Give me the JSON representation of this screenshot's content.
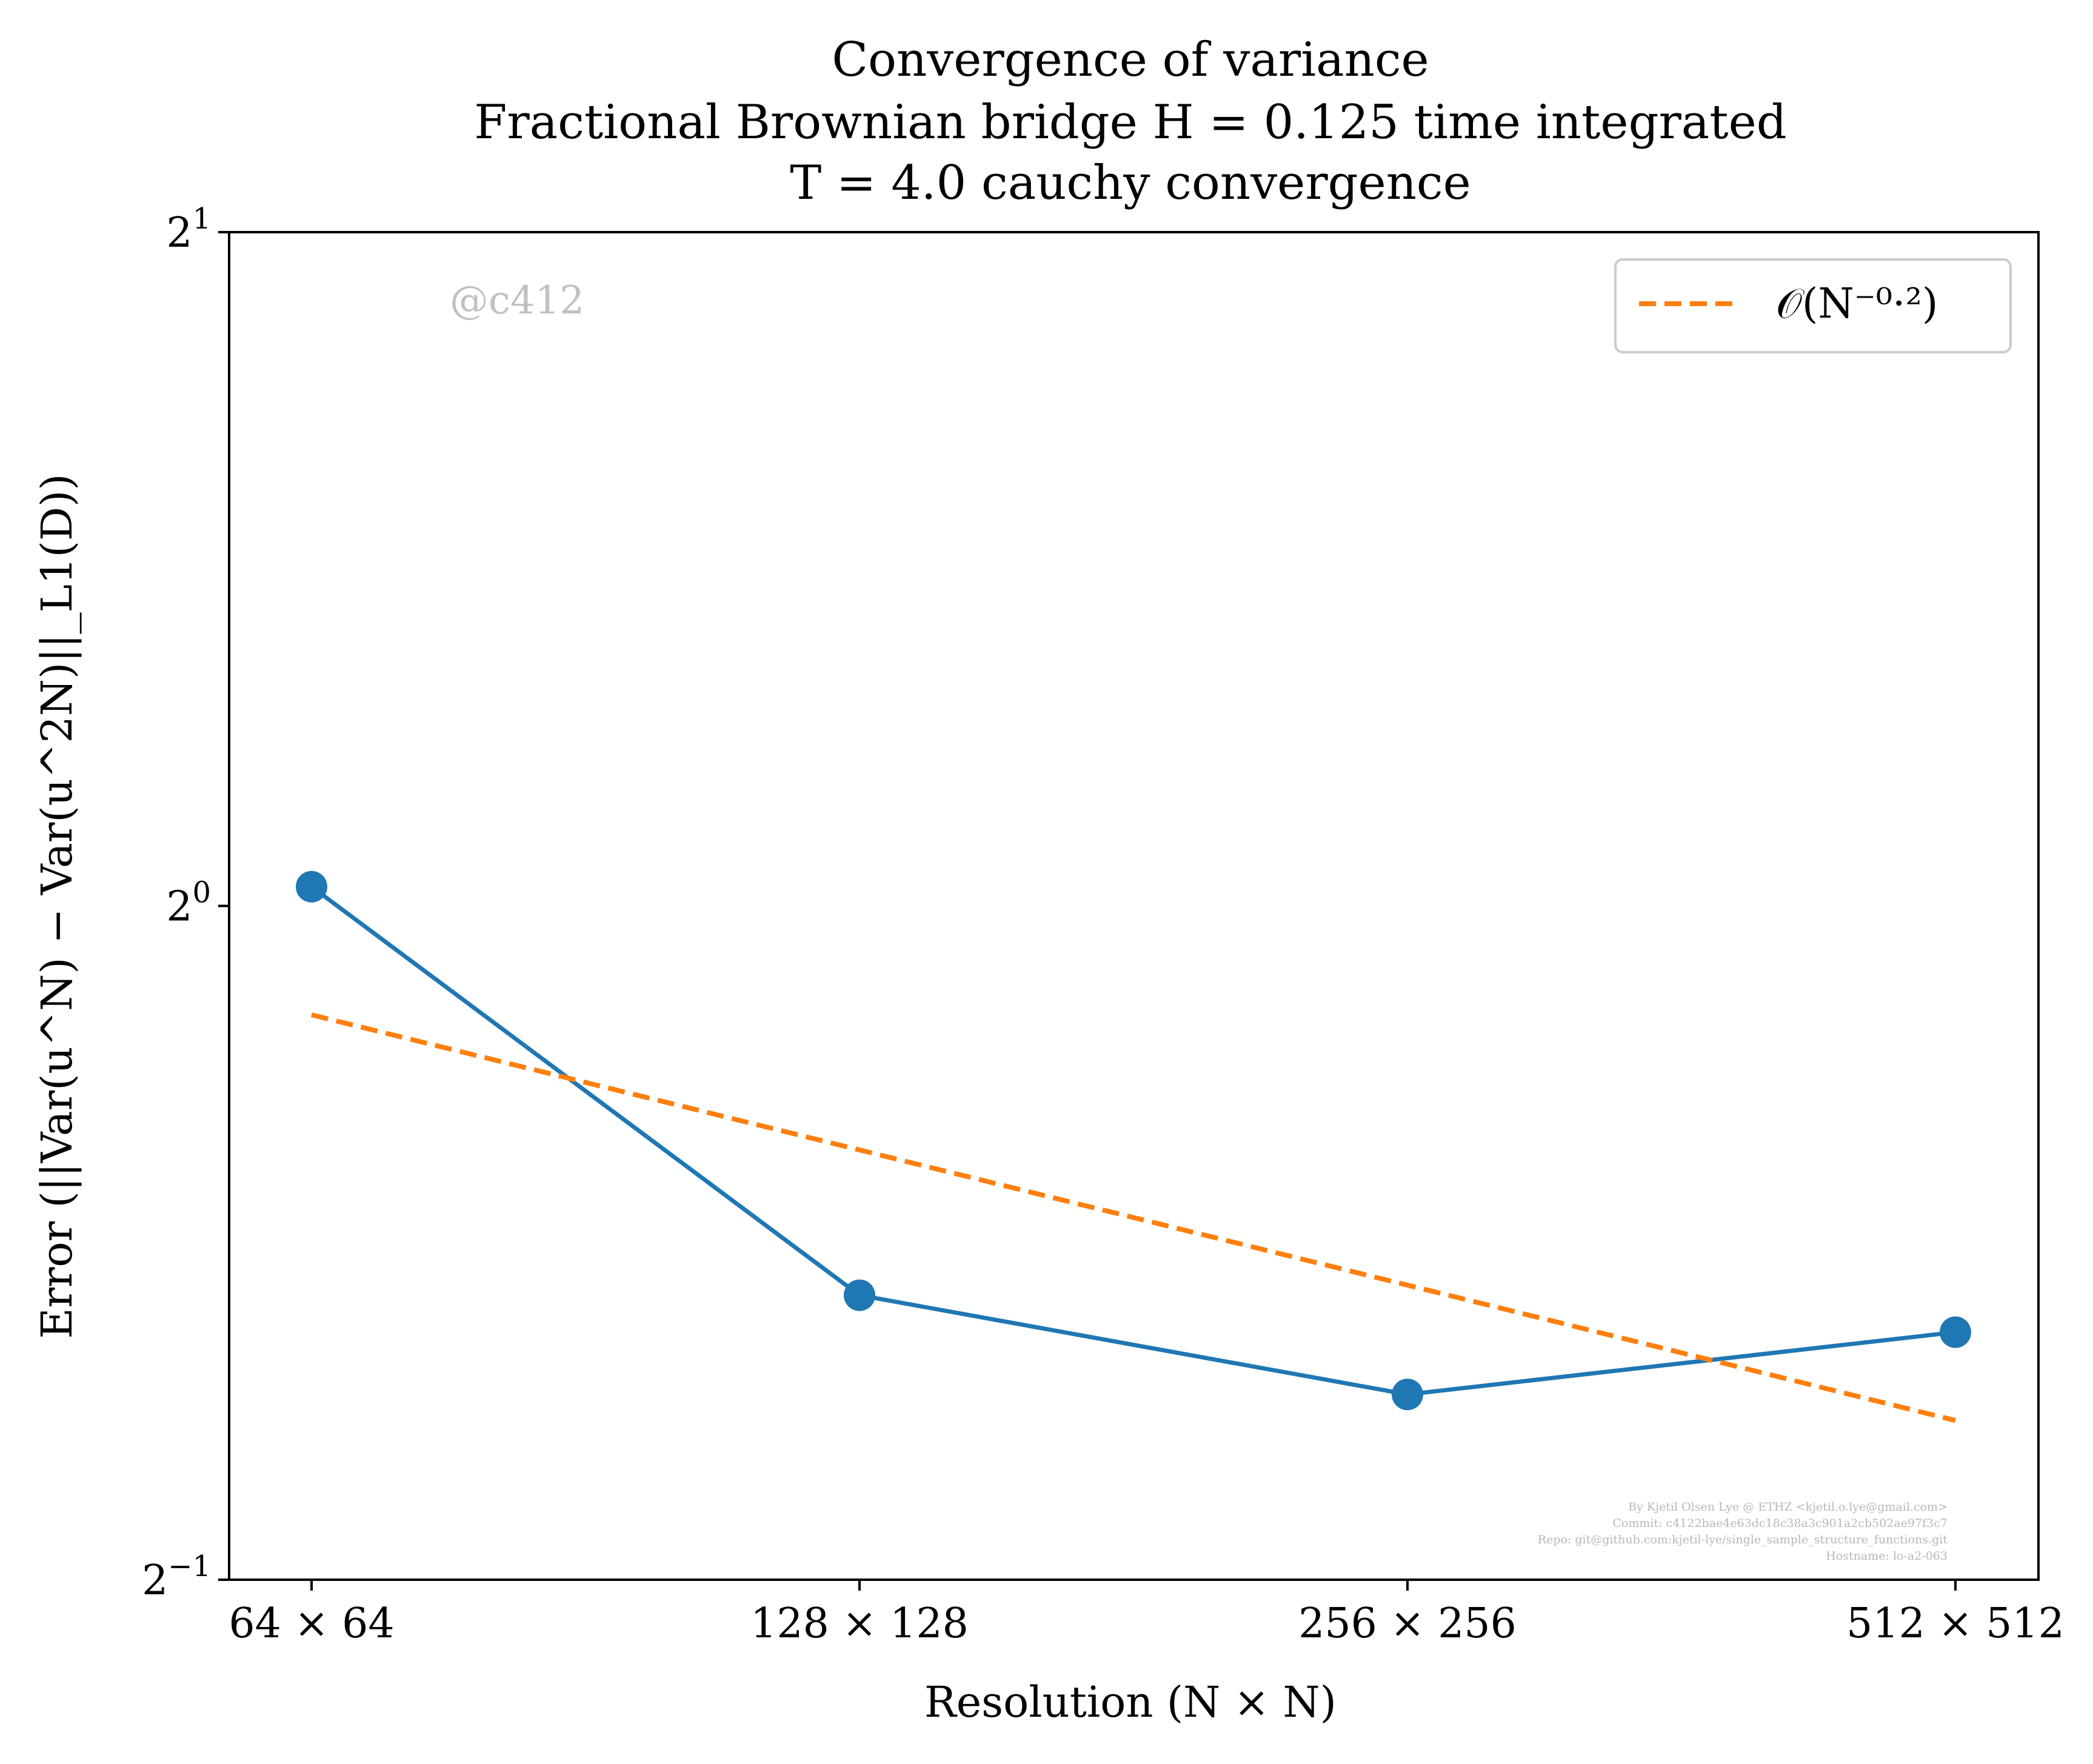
{
  "chart_data": {
    "type": "line",
    "title_lines": [
      "Convergence of variance",
      "Fractional Brownian bridge H = 0.125 time integrated",
      "T = 4.0 cauchy convergence"
    ],
    "xlabel": "Resolution (N × N)",
    "ylabel": "Error (||Var(u^N) − Var(u^2N)||_L1(D))",
    "x": [
      64,
      128,
      256,
      512
    ],
    "xtick_labels": [
      "64 × 64",
      "128 × 128",
      "256 × 256",
      "512 × 512"
    ],
    "xscale": "log2",
    "yscale": "log2",
    "ylim": [
      0.5,
      2
    ],
    "ytick_labels": [
      {
        "value": 2,
        "base": "2",
        "exp": "1"
      },
      {
        "value": 1,
        "base": "2",
        "exp": "0"
      },
      {
        "value": 0.5,
        "base": "2",
        "exp": "−1"
      }
    ],
    "series": [
      {
        "values": [
          1.02,
          0.67,
          0.605,
          0.645
        ],
        "color": "#1f77b4",
        "style": "solid",
        "marker": "circle"
      },
      {
        "name": "O(N^−0.2)",
        "values": [
          0.894,
          0.778,
          0.677,
          0.589
        ],
        "color": "#ff7f0e",
        "style": "dashed",
        "marker": "none"
      }
    ],
    "legend": {
      "position": "top-right",
      "label": "𝒪(N⁻⁰·²)"
    },
    "grid": false,
    "watermark": "@c412",
    "credits": [
      "By Kjetil Olsen Lye @ ETHZ <kjetil.o.lye@gmail.com>",
      "Commit: c4122bae4e63dc18c38a3c901a2cb502ae97f3c7",
      "Repo: git@github.com:kjetil-lye/single_sample_structure_functions.git",
      "Hostname: lo-a2-063"
    ]
  }
}
